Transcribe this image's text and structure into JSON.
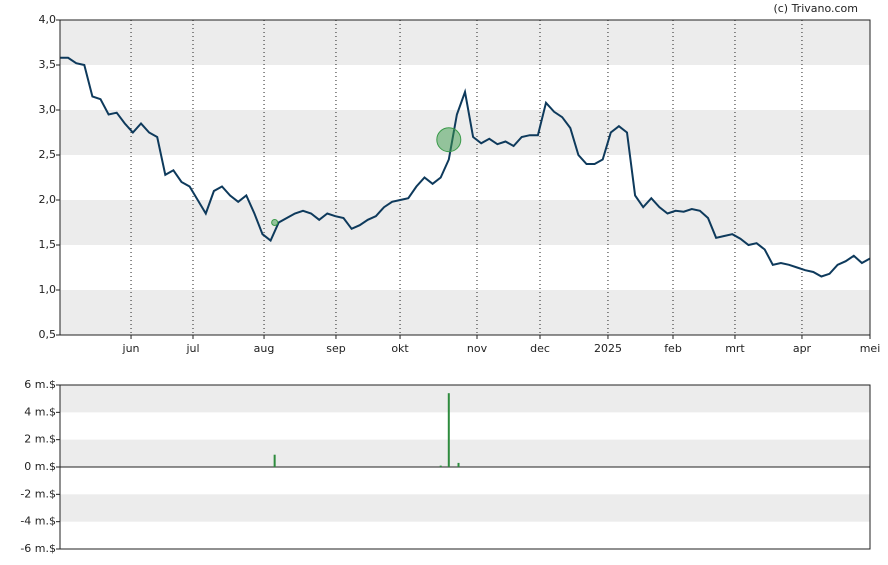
{
  "credit": "(c) Trivano.com",
  "chart_data": [
    {
      "type": "line",
      "color": "#0e3a5c",
      "grid": true,
      "bands": true,
      "x": [
        0,
        1,
        2,
        3,
        4,
        5,
        6,
        7,
        8,
        9,
        10,
        11,
        12,
        13,
        14,
        15,
        16,
        17,
        18,
        19,
        20,
        21,
        22,
        23,
        24,
        25,
        26,
        27,
        28,
        29,
        30,
        31,
        32,
        33,
        34,
        35,
        36,
        37,
        38,
        39,
        40,
        41,
        42,
        43,
        44,
        45,
        46,
        47,
        48,
        49,
        50,
        51,
        52,
        53,
        54,
        55,
        56,
        57,
        58,
        59,
        60,
        61,
        62,
        63,
        64,
        65,
        66,
        67,
        68,
        69,
        70,
        71,
        72,
        73,
        74,
        75,
        76,
        77,
        78,
        79,
        80,
        81,
        82,
        83,
        84,
        85,
        86,
        87,
        88,
        89,
        90,
        91,
        92,
        93,
        94,
        95,
        96,
        97,
        98,
        99,
        100
      ],
      "values": [
        3.58,
        3.58,
        3.52,
        3.5,
        3.15,
        3.12,
        2.95,
        2.97,
        2.85,
        2.75,
        2.85,
        2.75,
        2.7,
        2.28,
        2.33,
        2.2,
        2.15,
        2.0,
        1.85,
        2.1,
        2.15,
        2.05,
        1.98,
        2.05,
        1.85,
        1.62,
        1.55,
        1.75,
        1.8,
        1.85,
        1.88,
        1.85,
        1.78,
        1.85,
        1.82,
        1.8,
        1.68,
        1.72,
        1.78,
        1.82,
        1.92,
        1.98,
        2.0,
        2.02,
        2.15,
        2.25,
        2.18,
        2.25,
        2.45,
        2.95,
        3.2,
        2.7,
        2.63,
        2.68,
        2.62,
        2.65,
        2.6,
        2.7,
        2.72,
        2.72,
        3.08,
        2.98,
        2.92,
        2.8,
        2.5,
        2.4,
        2.4,
        2.45,
        2.75,
        2.82,
        2.75,
        2.05,
        1.92,
        2.02,
        1.92,
        1.85,
        1.88,
        1.87,
        1.9,
        1.88,
        1.8,
        1.58,
        1.6,
        1.62,
        1.57,
        1.5,
        1.52,
        1.45,
        1.28,
        1.3,
        1.28,
        1.25,
        1.22,
        1.2,
        1.15,
        1.18,
        1.28,
        1.32,
        1.38,
        1.3,
        1.35
      ],
      "markers": {
        "color": "#3a9a4a",
        "x": [
          48,
          26.5
        ],
        "values": [
          2.67,
          1.75
        ]
      },
      "xlim": [
        0,
        100
      ],
      "ylim": [
        0.5,
        4.0
      ],
      "yticks": [
        {
          "value": 0.5,
          "label": "0,5"
        },
        {
          "value": 1.0,
          "label": "1,0"
        },
        {
          "value": 1.5,
          "label": "1,5"
        },
        {
          "value": 2.0,
          "label": "2,0"
        },
        {
          "value": 2.5,
          "label": "2,5"
        },
        {
          "value": 3.0,
          "label": "3,0"
        },
        {
          "value": 3.5,
          "label": "3,5"
        },
        {
          "value": 4.0,
          "label": "4,0"
        }
      ],
      "xticks": [
        {
          "value": 8.77,
          "label": "jun"
        },
        {
          "value": 16.42,
          "label": "jul"
        },
        {
          "value": 25.19,
          "label": "aug"
        },
        {
          "value": 34.07,
          "label": "sep"
        },
        {
          "value": 41.98,
          "label": "okt"
        },
        {
          "value": 51.48,
          "label": "nov"
        },
        {
          "value": 59.26,
          "label": "dec"
        },
        {
          "value": 67.65,
          "label": "2025"
        },
        {
          "value": 75.68,
          "label": "feb"
        },
        {
          "value": 83.33,
          "label": "mrt"
        },
        {
          "value": 91.6,
          "label": "apr"
        },
        {
          "value": 100,
          "label": "mei"
        }
      ]
    },
    {
      "type": "bar",
      "color": "#2e8b3e",
      "bands": true,
      "x": [
        26.5,
        47,
        48,
        49.2
      ],
      "values": [
        0.9,
        0.1,
        5.4,
        0.3
      ],
      "xlim": [
        0,
        100
      ],
      "ylim": [
        -6,
        6
      ],
      "yticks": [
        {
          "value": -6,
          "label": "-6 m.$"
        },
        {
          "value": -4,
          "label": "-4 m.$"
        },
        {
          "value": -2,
          "label": "-2 m.$"
        },
        {
          "value": 0,
          "label": "0 m.$"
        },
        {
          "value": 2,
          "label": "2 m.$"
        },
        {
          "value": 4,
          "label": "4 m.$"
        },
        {
          "value": 6,
          "label": "6 m.$"
        }
      ]
    }
  ]
}
